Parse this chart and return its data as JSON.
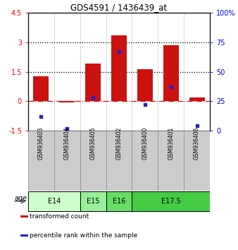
{
  "title": "GDS4591 / 1436439_at",
  "samples": [
    "GSM936403",
    "GSM936404",
    "GSM936405",
    "GSM936402",
    "GSM936400",
    "GSM936401",
    "GSM936406"
  ],
  "red_values": [
    1.25,
    -0.07,
    1.9,
    3.35,
    1.62,
    2.85,
    0.18
  ],
  "blue_values": [
    12,
    2,
    28,
    67,
    22,
    37,
    4
  ],
  "ylim_left": [
    -1.5,
    4.5
  ],
  "ylim_right": [
    0,
    100
  ],
  "yticks_left": [
    -1.5,
    0,
    1.5,
    3,
    4.5
  ],
  "yticks_right": [
    0,
    25,
    50,
    75,
    100
  ],
  "ytick_labels_left": [
    "-1.5",
    "0",
    "1.5",
    "3",
    "4.5"
  ],
  "ytick_labels_right": [
    "0",
    "25",
    "50",
    "75",
    "100%"
  ],
  "hlines": [
    1.5,
    3.0
  ],
  "zero_line": 0.0,
  "age_groups": [
    {
      "label": "E14",
      "start": 0,
      "end": 2,
      "color": "#ccffcc"
    },
    {
      "label": "E15",
      "start": 2,
      "end": 3,
      "color": "#99ee99"
    },
    {
      "label": "E16",
      "start": 3,
      "end": 4,
      "color": "#66dd66"
    },
    {
      "label": "E17.5",
      "start": 4,
      "end": 7,
      "color": "#44cc44"
    }
  ],
  "bar_color": "#cc1111",
  "dot_color": "#2222cc",
  "bar_width": 0.6,
  "legend_items": [
    {
      "color": "#cc1111",
      "label": "transformed count"
    },
    {
      "color": "#2222cc",
      "label": "percentile rank within the sample"
    }
  ]
}
